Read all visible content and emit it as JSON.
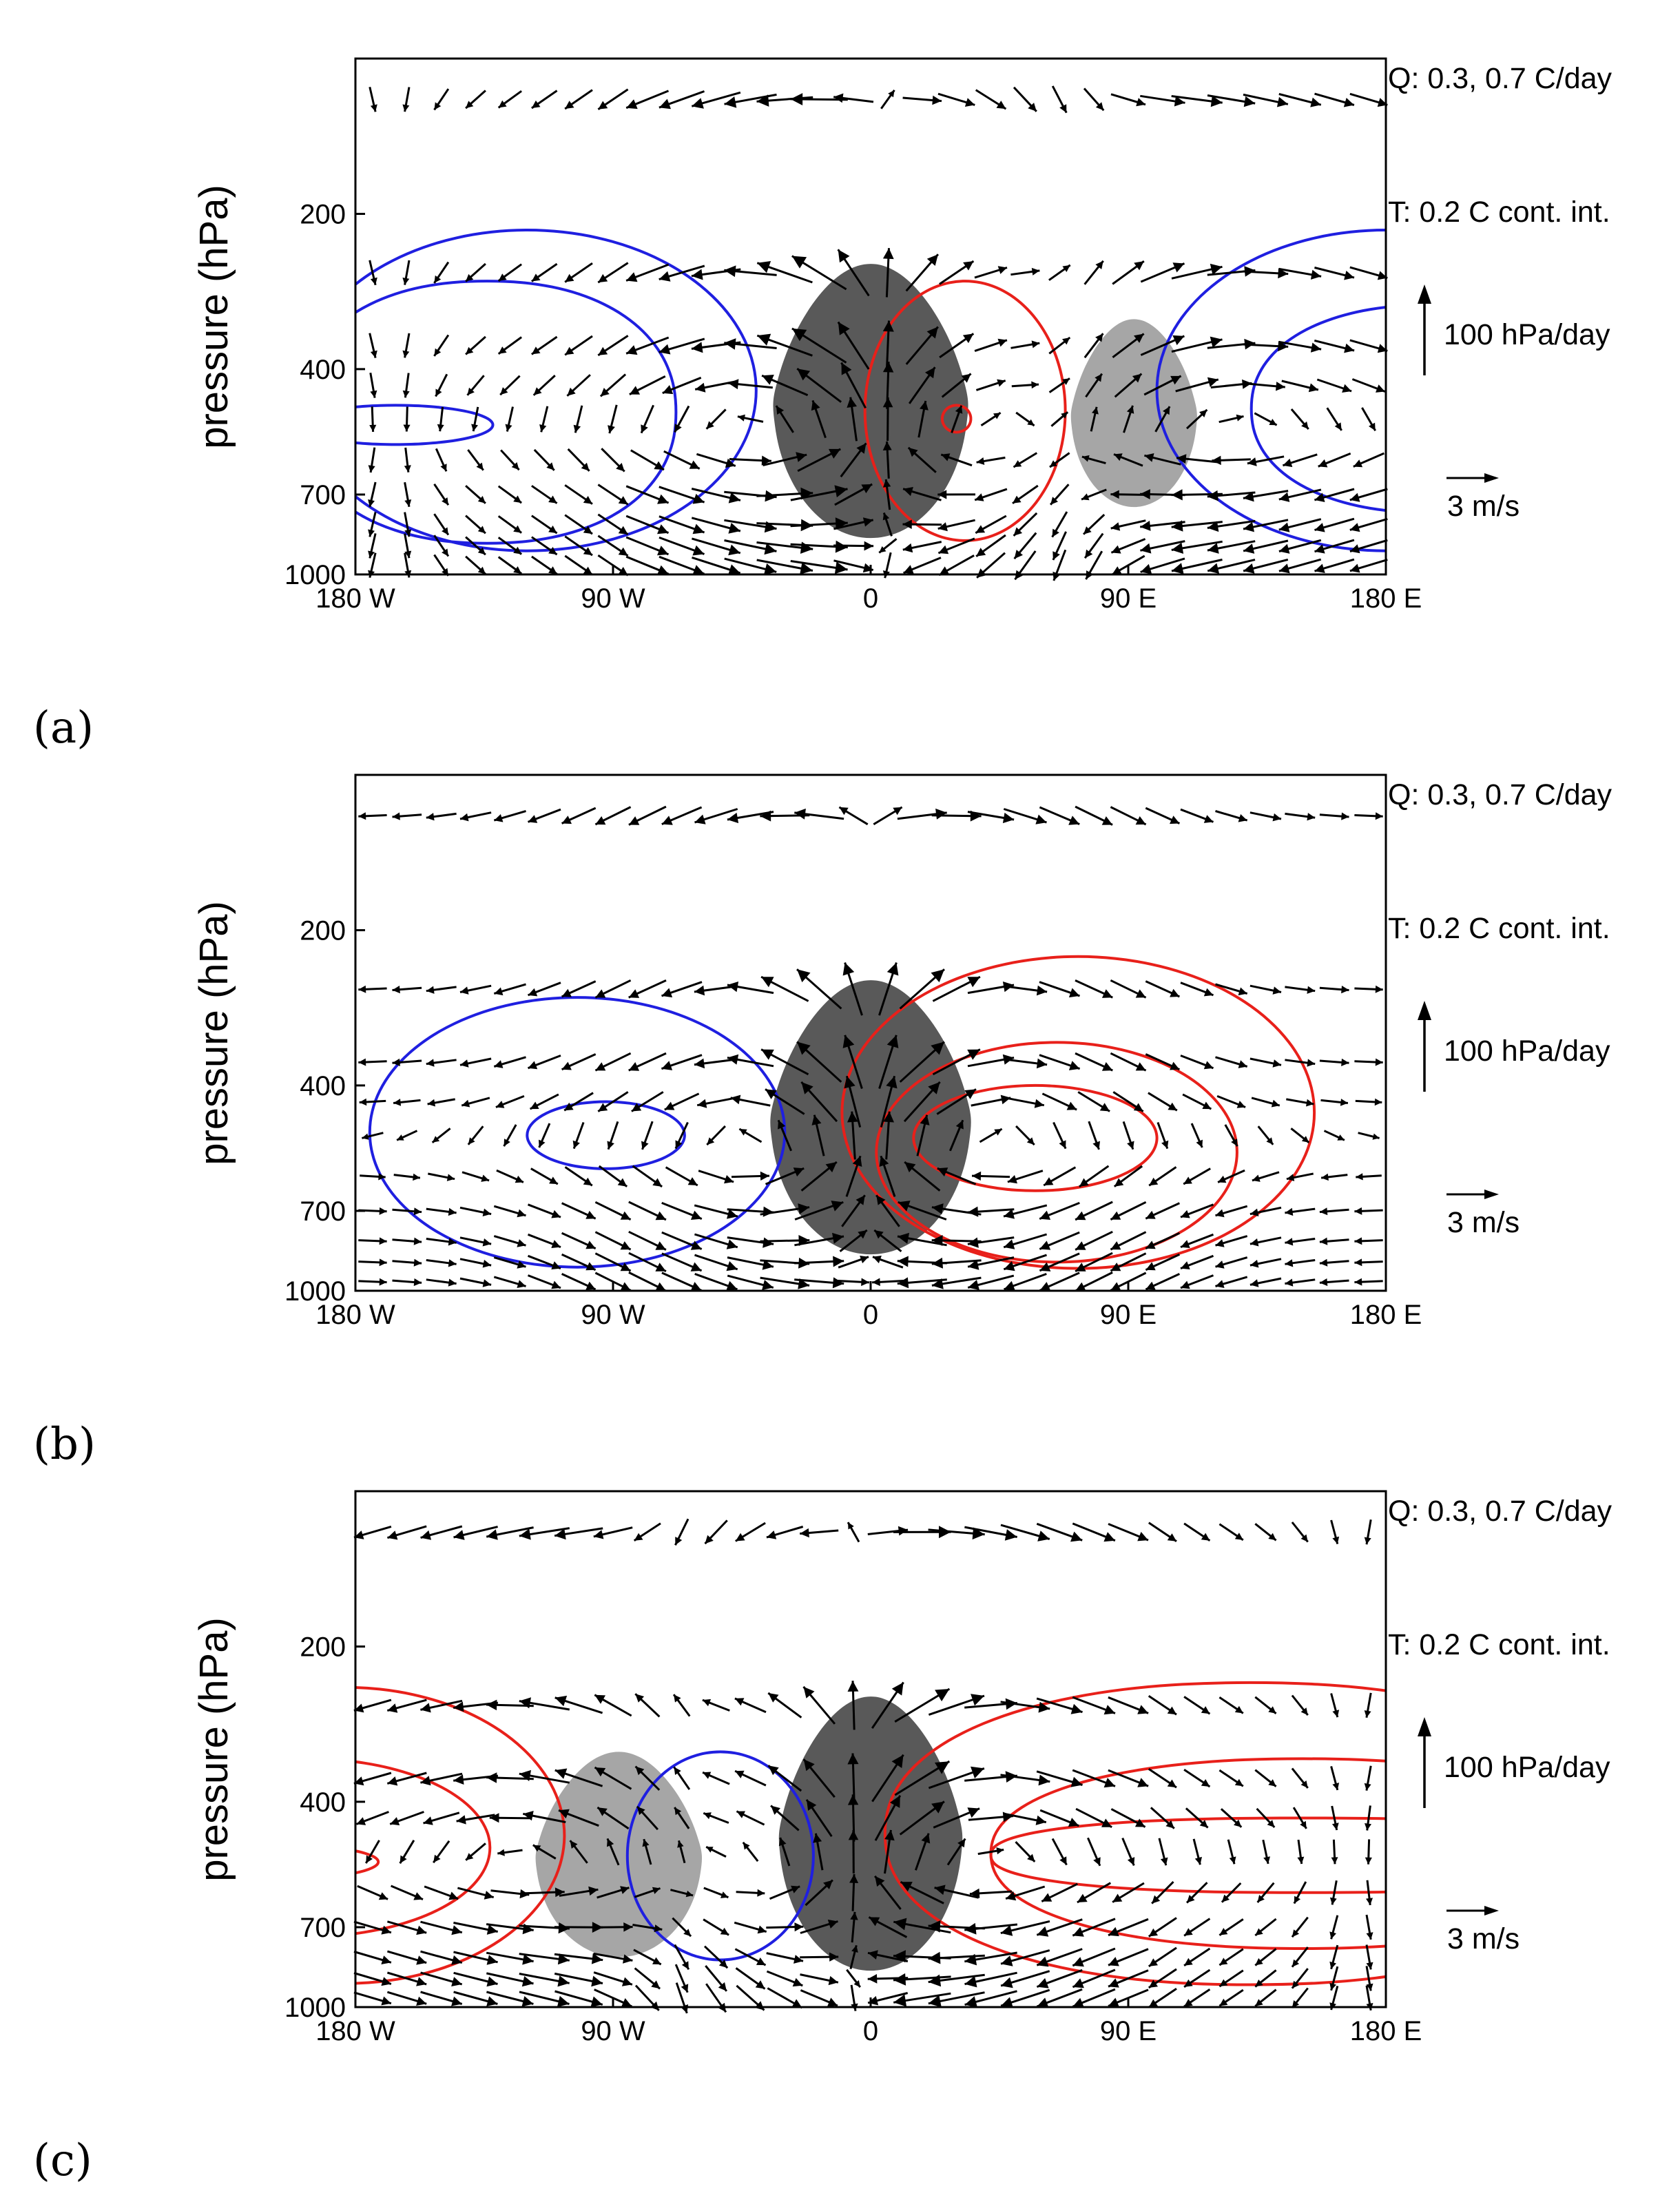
{
  "figure": {
    "panels": [
      {
        "label": "(a)",
        "annotations": {
          "q": "Q: 0.3, 0.7 C/day",
          "t": "T: 0.2 C cont. int.",
          "omega": "100 hPa/day",
          "u": "3 m/s"
        },
        "heating": [
          {
            "level": "0.7",
            "center_lon": 0,
            "half_width_lon": 34,
            "top_hpa": 250,
            "bottom_hpa": 850
          },
          {
            "level": "0.3",
            "center_lon": 92,
            "half_width_lon": 22,
            "top_hpa": 320,
            "bottom_hpa": 740
          }
        ]
      },
      {
        "label": "(b)",
        "annotations": {
          "q": "Q: 0.3, 0.7 C/day",
          "t": "T: 0.2 C cont. int.",
          "omega": "100 hPa/day",
          "u": "3 m/s"
        },
        "heating": [
          {
            "level": "0.7",
            "center_lon": 0,
            "half_width_lon": 35,
            "top_hpa": 250,
            "bottom_hpa": 850
          }
        ]
      },
      {
        "label": "(c)",
        "annotations": {
          "q": "Q: 0.3, 0.7 C/day",
          "t": "T: 0.2 C cont. int.",
          "omega": "100 hPa/day",
          "u": "3 m/s"
        },
        "heating": [
          {
            "level": "0.7",
            "center_lon": 0,
            "half_width_lon": 32,
            "top_hpa": 250,
            "bottom_hpa": 850
          },
          {
            "level": "0.3",
            "center_lon": -88,
            "half_width_lon": 29,
            "top_hpa": 320,
            "bottom_hpa": 800
          }
        ]
      }
    ]
  },
  "chart_data": [
    {
      "type": "contour-vector",
      "title": "(a)",
      "ylabel": "pressure (hPa)",
      "xlabel": "",
      "x_ticks": [
        "180 W",
        "90 W",
        "0",
        "90 E",
        "180 E"
      ],
      "x_tick_values": [
        -180,
        -90,
        0,
        90,
        180
      ],
      "y_ticks": [
        "200",
        "400",
        "700",
        "1000"
      ],
      "y_tick_values": [
        200,
        400,
        700,
        1000
      ],
      "xlim": [
        -180,
        180
      ],
      "ylim": [
        1000,
        100
      ],
      "y_scale": "log",
      "heating_contours_C_per_day": [
        0.3,
        0.7
      ],
      "temperature_contour_interval_C": 0.2,
      "temperature_anomaly_centers": [
        {
          "lon": -160,
          "p_hpa": 500,
          "sign": "negative",
          "levels": 3
        },
        {
          "lon": 30,
          "p_hpa": 480,
          "sign": "positive",
          "levels": 2
        }
      ],
      "upper_level_wind": "westward over the west/central domain, eastward at 25E to 75E"
    },
    {
      "type": "contour-vector",
      "title": "(b)",
      "ylabel": "pressure (hPa)",
      "xlabel": "",
      "x_ticks": [
        "180 W",
        "90 W",
        "0",
        "90 E",
        "180 E"
      ],
      "x_tick_values": [
        -180,
        -90,
        0,
        90,
        180
      ],
      "y_ticks": [
        "200",
        "400",
        "700",
        "1000"
      ],
      "y_tick_values": [
        200,
        400,
        700,
        1000
      ],
      "xlim": [
        -180,
        180
      ],
      "ylim": [
        1000,
        100
      ],
      "y_scale": "log",
      "heating_contours_C_per_day": [
        0.3,
        0.7
      ],
      "temperature_contour_interval_C": 0.2,
      "temperature_anomaly_centers": [
        {
          "lon": -90,
          "p_hpa": 500,
          "sign": "negative",
          "levels": 2
        },
        {
          "lon": 45,
          "p_hpa": 500,
          "sign": "positive",
          "levels": 3
        }
      ],
      "upper_level_wind": "westward west of 0, eastward east of 0"
    },
    {
      "type": "contour-vector",
      "title": "(c)",
      "ylabel": "pressure (hPa)",
      "xlabel": "",
      "x_ticks": [
        "180 W",
        "90 W",
        "0",
        "90 E",
        "180 E"
      ],
      "x_tick_values": [
        -180,
        -90,
        0,
        90,
        180
      ],
      "y_ticks": [
        "200",
        "400",
        "700",
        "1000"
      ],
      "y_tick_values": [
        200,
        400,
        700,
        1000
      ],
      "xlim": [
        -180,
        180
      ],
      "ylim": [
        1000,
        100
      ],
      "y_scale": "log",
      "heating_contours_C_per_day": [
        0.3,
        0.7
      ],
      "temperature_contour_interval_C": 0.2,
      "temperature_anomaly_centers": [
        {
          "lon": -175,
          "p_hpa": 500,
          "sign": "positive",
          "levels": 3
        },
        {
          "lon": -55,
          "p_hpa": 500,
          "sign": "negative",
          "levels": 1
        },
        {
          "lon": 110,
          "p_hpa": 500,
          "sign": "positive",
          "levels": 3
        }
      ],
      "upper_level_wind": "westward between 90W and 0, eastward elsewhere"
    }
  ],
  "colors": {
    "heavy": "#595959",
    "light": "#a6a6a6",
    "warm": "#e8201a",
    "cold": "#1f1fe0",
    "ink": "#000000"
  }
}
